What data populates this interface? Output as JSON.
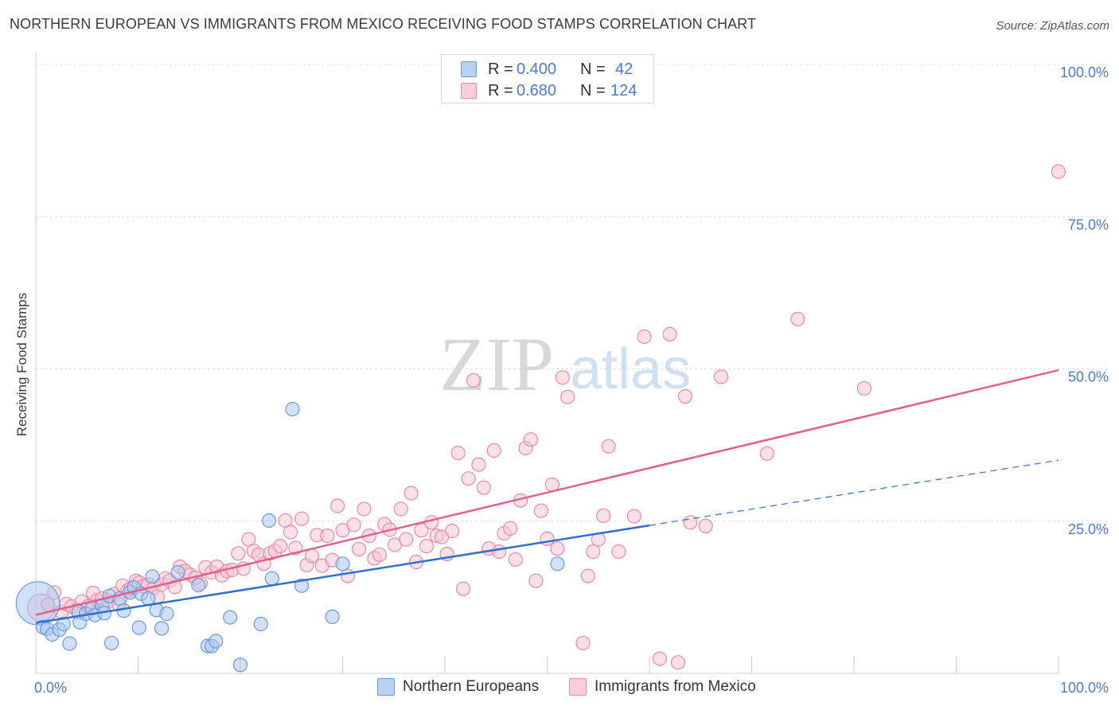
{
  "header": {
    "title": "NORTHERN EUROPEAN VS IMMIGRANTS FROM MEXICO RECEIVING FOOD STAMPS CORRELATION CHART",
    "source": "Source: ZipAtlas.com"
  },
  "watermark": {
    "zip": "ZIP",
    "atlas": "atlas"
  },
  "colors": {
    "blue_fill": "#a9c7ef",
    "blue_stroke": "#6a9ad8",
    "blue_line": "#2f6fd0",
    "pink_fill": "#f7c6d5",
    "pink_stroke": "#e88aa8",
    "pink_line": "#e2608a",
    "tick_text": "#4a7bd0",
    "grid": "#dcdcdc"
  },
  "stats": {
    "rows": [
      {
        "r_label": "R =",
        "r_value": "0.400",
        "n_label": "N =",
        "n_value": "42",
        "series": "blue"
      },
      {
        "r_label": "R =",
        "r_value": "0.680",
        "n_label": "N =",
        "n_value": "124",
        "series": "pink"
      }
    ]
  },
  "chart_data": {
    "type": "scatter",
    "title": "NORTHERN EUROPEAN VS IMMIGRANTS FROM MEXICO RECEIVING FOOD STAMPS CORRELATION CHART",
    "xlabel": "",
    "ylabel": "Receiving Food Stamps",
    "xlim": [
      0,
      100
    ],
    "ylim": [
      0,
      100
    ],
    "x_tick_labels": [
      "0.0%",
      "100.0%"
    ],
    "y_ticks": [
      25,
      50,
      75,
      100
    ],
    "y_tick_labels": [
      "25.0%",
      "50.0%",
      "75.0%",
      "100.0%"
    ],
    "grid": true,
    "legend_position": "bottom-center",
    "series": [
      {
        "name": "Northern Europeans",
        "color": "blue",
        "r": 0.4,
        "n": 42,
        "trend": {
          "x0": 0,
          "y0": 8.3,
          "x1": 60,
          "y1": 24.3,
          "dashed_to_x": 100,
          "dashed_to_y": 35.0
        },
        "points": [
          [
            0.2,
            11.5,
            3.2
          ],
          [
            0.7,
            7.6,
            1
          ],
          [
            1.1,
            7.3,
            1
          ],
          [
            1.6,
            6.4,
            1
          ],
          [
            2.3,
            7.2,
            1
          ],
          [
            2.7,
            8.1,
            1
          ],
          [
            3.3,
            4.9,
            1
          ],
          [
            4.2,
            10.1,
            1
          ],
          [
            4.3,
            8.4,
            1
          ],
          [
            4.9,
            9.8,
            1
          ],
          [
            5.5,
            10.7,
            1
          ],
          [
            5.8,
            9.6,
            1
          ],
          [
            6.5,
            11.2,
            1
          ],
          [
            6.7,
            9.9,
            1
          ],
          [
            7.2,
            12.7,
            1
          ],
          [
            7.4,
            5.0,
            1
          ],
          [
            8.2,
            12.3,
            1
          ],
          [
            8.6,
            10.3,
            1
          ],
          [
            9.2,
            13.3,
            1
          ],
          [
            9.6,
            14.1,
            1
          ],
          [
            10.1,
            7.5,
            1
          ],
          [
            10.3,
            13.1,
            1
          ],
          [
            11.0,
            12.3,
            1
          ],
          [
            11.4,
            15.9,
            1
          ],
          [
            11.8,
            10.4,
            1
          ],
          [
            12.3,
            7.4,
            1
          ],
          [
            12.8,
            9.8,
            1
          ],
          [
            13.9,
            16.6,
            1
          ],
          [
            15.9,
            14.5,
            1
          ],
          [
            16.8,
            4.5,
            1
          ],
          [
            17.2,
            4.5,
            1
          ],
          [
            17.6,
            5.3,
            1
          ],
          [
            19.0,
            9.2,
            1
          ],
          [
            20.0,
            1.4,
            1
          ],
          [
            22.0,
            8.1,
            1
          ],
          [
            22.8,
            25.1,
            1
          ],
          [
            23.1,
            15.6,
            1
          ],
          [
            25.1,
            43.4,
            1
          ],
          [
            26.0,
            14.4,
            1
          ],
          [
            29.0,
            9.3,
            1
          ],
          [
            30.0,
            18.0,
            1
          ],
          [
            51.0,
            18.0,
            1
          ]
        ]
      },
      {
        "name": "Immigrants from Mexico",
        "color": "pink",
        "r": 0.68,
        "n": 124,
        "trend": {
          "x0": 0,
          "y0": 9.6,
          "x1": 100,
          "y1": 49.8
        },
        "points": [
          [
            0.5,
            10.8,
            2
          ],
          [
            1.2,
            11.3,
            1
          ],
          [
            1.8,
            13.3,
            1
          ],
          [
            2.5,
            10.1,
            1
          ],
          [
            3.0,
            11.4,
            1
          ],
          [
            3.5,
            11.0,
            1
          ],
          [
            4.0,
            10.4,
            1
          ],
          [
            4.5,
            11.8,
            1
          ],
          [
            5.1,
            11.0,
            1
          ],
          [
            5.6,
            13.2,
            1
          ],
          [
            6.0,
            12.0,
            1
          ],
          [
            6.5,
            12.3,
            1
          ],
          [
            7.1,
            11.9,
            1
          ],
          [
            7.6,
            13.0,
            1
          ],
          [
            8.1,
            11.4,
            1
          ],
          [
            8.5,
            14.4,
            1
          ],
          [
            9.0,
            13.6,
            1
          ],
          [
            9.3,
            14.0,
            1
          ],
          [
            9.8,
            15.2,
            1
          ],
          [
            10.1,
            14.9,
            1
          ],
          [
            10.5,
            14.3,
            1
          ],
          [
            11.0,
            14.6,
            1
          ],
          [
            11.5,
            14.0,
            1
          ],
          [
            11.9,
            12.6,
            1
          ],
          [
            12.3,
            14.6,
            1
          ],
          [
            12.7,
            15.6,
            1
          ],
          [
            13.1,
            15.2,
            1
          ],
          [
            13.6,
            14.2,
            1
          ],
          [
            14.1,
            17.5,
            1
          ],
          [
            14.6,
            16.8,
            1
          ],
          [
            15.1,
            16.2,
            1
          ],
          [
            15.6,
            15.7,
            1
          ],
          [
            16.1,
            14.8,
            1
          ],
          [
            16.6,
            17.4,
            1
          ],
          [
            17.2,
            16.6,
            1
          ],
          [
            17.7,
            17.5,
            1
          ],
          [
            18.2,
            16.1,
            1
          ],
          [
            18.7,
            16.8,
            1
          ],
          [
            19.2,
            17.0,
            1
          ],
          [
            19.8,
            19.7,
            1
          ],
          [
            20.3,
            17.2,
            1
          ],
          [
            20.8,
            22.0,
            1
          ],
          [
            21.3,
            20.1,
            1
          ],
          [
            21.8,
            19.5,
            1
          ],
          [
            22.3,
            18.0,
            1
          ],
          [
            22.9,
            19.7,
            1
          ],
          [
            23.4,
            20.1,
            1
          ],
          [
            23.9,
            20.9,
            1
          ],
          [
            24.4,
            25.1,
            1
          ],
          [
            24.9,
            23.2,
            1
          ],
          [
            25.4,
            20.6,
            1
          ],
          [
            26.0,
            25.4,
            1
          ],
          [
            26.5,
            17.8,
            1
          ],
          [
            27.0,
            19.3,
            1
          ],
          [
            27.5,
            22.7,
            1
          ],
          [
            28.0,
            17.7,
            1
          ],
          [
            28.5,
            22.6,
            1
          ],
          [
            29.0,
            18.6,
            1
          ],
          [
            29.5,
            27.5,
            1
          ],
          [
            30.0,
            23.5,
            1
          ],
          [
            30.5,
            16.0,
            1
          ],
          [
            31.1,
            24.4,
            1
          ],
          [
            31.6,
            20.4,
            1
          ],
          [
            32.1,
            27.0,
            1
          ],
          [
            32.6,
            22.6,
            1
          ],
          [
            33.1,
            18.9,
            1
          ],
          [
            33.6,
            19.5,
            1
          ],
          [
            34.1,
            24.5,
            1
          ],
          [
            34.6,
            23.6,
            1
          ],
          [
            35.1,
            21.1,
            1
          ],
          [
            35.7,
            27.0,
            1
          ],
          [
            36.2,
            22.0,
            1
          ],
          [
            36.7,
            29.6,
            1
          ],
          [
            37.2,
            18.3,
            1
          ],
          [
            37.7,
            23.5,
            1
          ],
          [
            38.2,
            20.9,
            1
          ],
          [
            38.7,
            24.8,
            1
          ],
          [
            39.2,
            22.6,
            1
          ],
          [
            39.7,
            22.4,
            1
          ],
          [
            40.2,
            19.6,
            1
          ],
          [
            40.7,
            23.4,
            1
          ],
          [
            41.3,
            36.2,
            1
          ],
          [
            41.8,
            13.9,
            1
          ],
          [
            42.3,
            32.0,
            1
          ],
          [
            42.8,
            48.1,
            1
          ],
          [
            43.3,
            34.3,
            1
          ],
          [
            43.8,
            30.5,
            1
          ],
          [
            44.3,
            20.5,
            1
          ],
          [
            44.8,
            36.6,
            1
          ],
          [
            45.3,
            20.0,
            1
          ],
          [
            45.8,
            23.0,
            1
          ],
          [
            46.4,
            23.8,
            1
          ],
          [
            46.9,
            18.7,
            1
          ],
          [
            47.4,
            28.4,
            1
          ],
          [
            47.9,
            37.0,
            1
          ],
          [
            48.4,
            38.4,
            1
          ],
          [
            48.9,
            15.2,
            1
          ],
          [
            49.4,
            26.7,
            1
          ],
          [
            50.0,
            22.1,
            1
          ],
          [
            50.5,
            31.0,
            1
          ],
          [
            51.0,
            20.5,
            1
          ],
          [
            51.5,
            48.6,
            1
          ],
          [
            52.0,
            45.4,
            1
          ],
          [
            53.5,
            5.0,
            1
          ],
          [
            54.0,
            16.0,
            1
          ],
          [
            54.5,
            20.0,
            1
          ],
          [
            55.0,
            22.0,
            1
          ],
          [
            55.5,
            25.9,
            1
          ],
          [
            56.0,
            37.3,
            1
          ],
          [
            57.0,
            20.0,
            1
          ],
          [
            58.5,
            25.8,
            1
          ],
          [
            59.5,
            55.3,
            1
          ],
          [
            61.0,
            2.4,
            1
          ],
          [
            62.0,
            55.7,
            1
          ],
          [
            62.8,
            1.8,
            1
          ],
          [
            63.5,
            45.5,
            1
          ],
          [
            64.0,
            24.8,
            1
          ],
          [
            65.5,
            24.2,
            1
          ],
          [
            67.0,
            48.7,
            1
          ],
          [
            71.5,
            36.1,
            1
          ],
          [
            74.5,
            58.2,
            1
          ],
          [
            81.0,
            46.8,
            1
          ],
          [
            100.0,
            82.4,
            1
          ]
        ]
      }
    ]
  },
  "legend": {
    "items": [
      {
        "label": "Northern Europeans",
        "color": "blue"
      },
      {
        "label": "Immigrants from Mexico",
        "color": "pink"
      }
    ]
  }
}
